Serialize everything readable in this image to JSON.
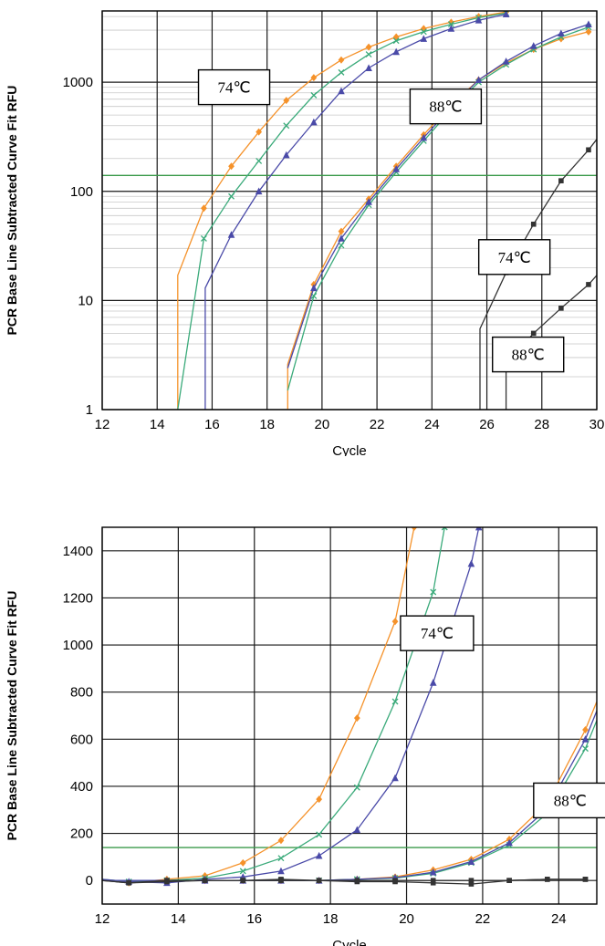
{
  "chart_data": [
    {
      "type": "line",
      "xlabel": "Cycle",
      "ylabel": "PCR Base Line Subtracted Curve Fit RFU",
      "xlim": [
        12,
        30
      ],
      "ylim": [
        1,
        4500
      ],
      "yscale": "log",
      "xticks": [
        "12",
        "14",
        "16",
        "18",
        "20",
        "22",
        "24",
        "26",
        "28",
        "30"
      ],
      "yticks": [
        "1",
        "10",
        "100",
        "1000"
      ],
      "threshold": 140,
      "threshold_color": "#3a9a4a",
      "grid": true,
      "annotations": [
        {
          "text": "74℃",
          "x": 16.8,
          "y": 900
        },
        {
          "text": "88℃",
          "x": 24.5,
          "y": 600
        },
        {
          "text": "74℃",
          "x": 27.0,
          "y": 25
        },
        {
          "text": "88℃",
          "x": 27.5,
          "y": 3.2
        }
      ],
      "series": [
        {
          "color": "#f5922a",
          "marker": "diamond",
          "x": [
            14.75,
            14.75,
            15.7,
            16.7,
            17.7,
            18.7,
            19.7,
            20.7,
            21.7,
            22.7,
            23.7,
            24.7,
            25.7,
            26.7
          ],
          "y": [
            1.0,
            17,
            70,
            170,
            350,
            680,
            1100,
            1600,
            2100,
            2600,
            3100,
            3550,
            4000,
            4400
          ]
        },
        {
          "color": "#3aaa7a",
          "marker": "x",
          "x": [
            14.75,
            15.7,
            16.7,
            17.7,
            18.7,
            19.7,
            20.7,
            21.7,
            22.7,
            23.7,
            24.7,
            25.7,
            26.7
          ],
          "y": [
            1.0,
            37,
            90,
            190,
            400,
            760,
            1230,
            1800,
            2400,
            2900,
            3400,
            3900,
            4300
          ]
        },
        {
          "color": "#4a4aa8",
          "marker": "triangle",
          "x": [
            15.75,
            15.75,
            16.7,
            17.7,
            18.7,
            19.7,
            20.7,
            21.7,
            22.7,
            23.7,
            24.7,
            25.7,
            26.7
          ],
          "y": [
            1.0,
            13,
            40,
            100,
            215,
            430,
            830,
            1350,
            1900,
            2500,
            3100,
            3700,
            4200
          ]
        },
        {
          "color": "#f5922a",
          "marker": "diamond",
          "x": [
            18.75,
            18.75,
            19.7,
            20.7,
            21.7,
            22.7,
            23.7,
            24.7,
            25.7,
            26.7,
            27.7,
            28.7,
            29.7
          ],
          "y": [
            1.0,
            2.6,
            14,
            43,
            85,
            170,
            330,
            620,
            1050,
            1500,
            2000,
            2500,
            2900
          ]
        },
        {
          "color": "#3aaa7a",
          "marker": "x",
          "x": [
            18.75,
            19.7,
            20.7,
            21.7,
            22.7,
            23.7,
            24.7,
            25.7,
            26.7,
            27.7,
            28.7,
            29.7
          ],
          "y": [
            1.5,
            11,
            32,
            75,
            150,
            290,
            560,
            1000,
            1450,
            2000,
            2600,
            3200
          ]
        },
        {
          "color": "#4a4aa8",
          "marker": "triangle",
          "x": [
            18.75,
            19.7,
            20.7,
            21.7,
            22.7,
            23.7,
            24.7,
            25.7,
            26.7,
            27.7,
            28.7,
            29.7
          ],
          "y": [
            2.4,
            13,
            37,
            80,
            160,
            310,
            590,
            1050,
            1550,
            2150,
            2800,
            3400
          ]
        },
        {
          "color": "#333333",
          "marker": "square",
          "x": [
            25.75,
            25.75,
            26.7,
            27.7,
            28.7,
            29.7,
            30.0
          ],
          "y": [
            1.0,
            5.5,
            18,
            50,
            125,
            240,
            300
          ]
        },
        {
          "color": "#333333",
          "marker": "square",
          "x": [
            26.7,
            26.7,
            27.7,
            28.7,
            29.7,
            30.0
          ],
          "y": [
            1.0,
            2.6,
            5.0,
            8.5,
            14,
            17
          ]
        }
      ]
    },
    {
      "type": "line",
      "xlabel": "Cycle",
      "ylabel": "PCR Base Line Subtracted Curve Fit RFU",
      "xlim": [
        12,
        25
      ],
      "ylim": [
        -100,
        1500
      ],
      "yscale": "linear",
      "xticks": [
        "12",
        "14",
        "16",
        "18",
        "20",
        "22",
        "24"
      ],
      "yticks": [
        "0",
        "200",
        "400",
        "600",
        "800",
        "1000",
        "1200",
        "1400"
      ],
      "threshold": 140,
      "threshold_color": "#3a9a4a",
      "grid": true,
      "annotations": [
        {
          "text": "74℃",
          "x": 20.8,
          "y": 1050
        },
        {
          "text": "88℃",
          "x": 24.3,
          "y": 340
        }
      ],
      "series": [
        {
          "color": "#f5922a",
          "marker": "diamond",
          "x": [
            12,
            12.7,
            13.7,
            14.7,
            15.7,
            16.7,
            17.7,
            18.7,
            19.7,
            20.2
          ],
          "y": [
            5,
            -10,
            5,
            20,
            75,
            170,
            345,
            690,
            1100,
            1500
          ]
        },
        {
          "color": "#3aaa7a",
          "marker": "x",
          "x": [
            12,
            12.7,
            13.7,
            14.7,
            15.7,
            16.7,
            17.7,
            18.7,
            19.7,
            20.7,
            21.0
          ],
          "y": [
            5,
            -5,
            0,
            10,
            40,
            95,
            195,
            395,
            760,
            1225,
            1500
          ]
        },
        {
          "color": "#4a4aa8",
          "marker": "triangle",
          "x": [
            12,
            12.7,
            13.7,
            14.7,
            15.7,
            16.7,
            17.7,
            18.7,
            19.7,
            20.7,
            21.7,
            21.9
          ],
          "y": [
            5,
            -5,
            -10,
            5,
            15,
            40,
            105,
            215,
            435,
            840,
            1345,
            1500
          ]
        },
        {
          "color": "#f5922a",
          "marker": "diamond",
          "x": [
            12,
            13.7,
            14.7,
            15.7,
            16.7,
            17.7,
            18.7,
            19.7,
            20.7,
            21.7,
            22.7,
            23.7,
            24.7,
            25.0
          ],
          "y": [
            0,
            0,
            0,
            0,
            0,
            0,
            5,
            15,
            45,
            90,
            175,
            330,
            640,
            760
          ]
        },
        {
          "color": "#3aaa7a",
          "marker": "x",
          "x": [
            12,
            13.7,
            14.7,
            15.7,
            16.7,
            17.7,
            18.7,
            19.7,
            20.7,
            21.7,
            22.7,
            23.7,
            24.7,
            25.0
          ],
          "y": [
            0,
            0,
            0,
            0,
            0,
            0,
            5,
            10,
            30,
            75,
            150,
            285,
            560,
            680
          ]
        },
        {
          "color": "#4a4aa8",
          "marker": "triangle",
          "x": [
            12,
            13.7,
            14.7,
            15.7,
            16.7,
            17.7,
            18.7,
            19.7,
            20.7,
            21.7,
            22.7,
            23.7,
            24.7,
            25.0
          ],
          "y": [
            0,
            0,
            0,
            0,
            0,
            0,
            5,
            12,
            35,
            80,
            160,
            305,
            600,
            720
          ]
        },
        {
          "color": "#333333",
          "marker": "square",
          "x": [
            12,
            12.7,
            13.7,
            14.7,
            15.7,
            16.7,
            17.7,
            18.7,
            19.7,
            20.7,
            21.7,
            22.7,
            23.7,
            24.7
          ],
          "y": [
            0,
            -10,
            0,
            0,
            0,
            0,
            0,
            -5,
            -5,
            -10,
            -15,
            0,
            5,
            5
          ]
        },
        {
          "color": "#333333",
          "marker": "square",
          "x": [
            12,
            12.7,
            13.7,
            14.7,
            15.7,
            16.7,
            17.7,
            18.7,
            19.7,
            20.7,
            21.7,
            22.7,
            23.7,
            24.7
          ],
          "y": [
            0,
            -10,
            -5,
            0,
            0,
            5,
            0,
            0,
            0,
            0,
            0,
            0,
            5,
            5
          ]
        }
      ]
    }
  ]
}
